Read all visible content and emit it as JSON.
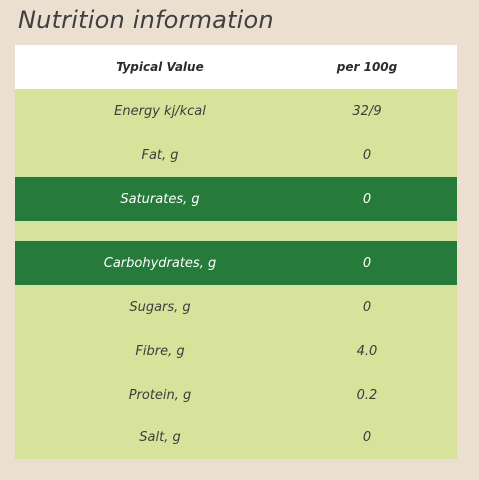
{
  "title": "Nutrition information",
  "header": {
    "label": "Typical Value",
    "value": "per 100g"
  },
  "rows": [
    {
      "label": "Energy kj/kcal",
      "value": "32/9"
    },
    {
      "label": "Fat, g",
      "value": "0"
    },
    {
      "label": "Saturates, g",
      "value": "0"
    },
    {
      "label": "Carbohydrates, g",
      "value": "0"
    },
    {
      "label": "Sugars, g",
      "value": "0"
    },
    {
      "label": "Fibre, g",
      "value": "4.0"
    },
    {
      "label": "Protein, g",
      "value": "0.2"
    },
    {
      "label": "Salt, g",
      "value": "0"
    }
  ],
  "colors": {
    "background": "#ebe0cf",
    "light_row": "#d7e29b",
    "dark_row": "#267a3a",
    "header_row": "#ffffff"
  }
}
